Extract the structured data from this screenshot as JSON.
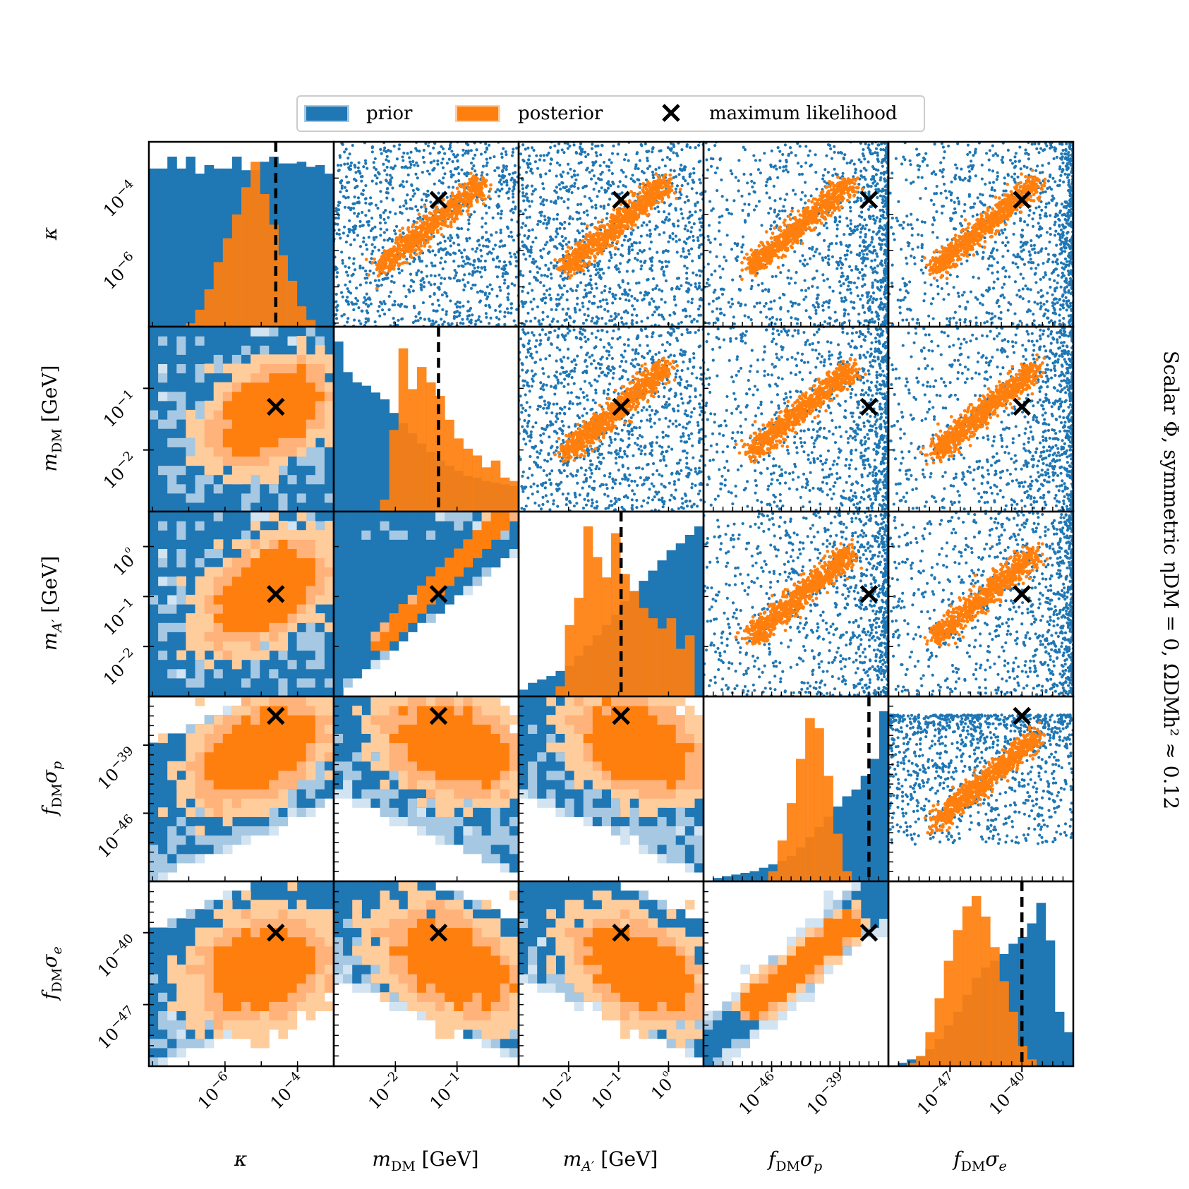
{
  "legend": {
    "items": [
      {
        "label": "prior",
        "color": "#1f77b4"
      },
      {
        "label": "posterior",
        "color": "#ff7f0e"
      },
      {
        "label": "maximum likelihood",
        "marker": "x"
      }
    ]
  },
  "side_title": "Scalar Φ, symmetric ηDM = 0, ΩDMh² ≈ 0.12",
  "colors": {
    "prior": "#1f77b4",
    "prior_light": "#a6c8e2",
    "prior_lighter": "#d2e3f1",
    "posterior": "#ff7f0e",
    "posterior_light": "#ffcc9c",
    "posterior_mid": "#ffb27a",
    "max_likelihood": "#000000"
  },
  "chart_data": {
    "type": "corner",
    "parameters": [
      {
        "name": "kappa",
        "label": "κ",
        "log": true,
        "range": [
          -8.1,
          -3.0
        ],
        "ticks": [
          {
            "value": -6,
            "label": "10−6"
          },
          {
            "value": -4,
            "label": "10−4"
          }
        ],
        "max_likelihood": -4.6
      },
      {
        "name": "m_DM",
        "label": "mDM [GeV]",
        "log": true,
        "range": [
          -3.0,
          0.0
        ],
        "ticks": [
          {
            "value": -2,
            "label": "10−2"
          },
          {
            "value": -1,
            "label": "10−1"
          }
        ],
        "max_likelihood": -1.3
      },
      {
        "name": "m_Aprime",
        "label": "mA′ [GeV]",
        "log": true,
        "range": [
          -3.0,
          0.7
        ],
        "ticks": [
          {
            "value": -2,
            "label": "10−2"
          },
          {
            "value": -1,
            "label": "10−1"
          },
          {
            "value": 0,
            "label": "10⁰"
          }
        ],
        "max_likelihood": -0.95
      },
      {
        "name": "fDM_sigma_p",
        "label": "fDMσp",
        "log": true,
        "range": [
          -53.0,
          -34.0
        ],
        "ticks": [
          {
            "value": -46,
            "label": "10−46"
          },
          {
            "value": -39,
            "label": "10−39"
          }
        ],
        "max_likelihood": -36.0
      },
      {
        "name": "fDM_sigma_e",
        "label": "fDMσe",
        "log": true,
        "range": [
          -53.0,
          -35.0
        ],
        "ticks": [
          {
            "value": -47,
            "label": "10−47"
          },
          {
            "value": -40,
            "label": "10−40"
          }
        ],
        "max_likelihood": -40.0
      }
    ],
    "marginals": [
      {
        "param": "kappa",
        "prior": [
          0.93,
          0.93,
          1.0,
          0.93,
          1.0,
          0.9,
          0.95,
          0.93,
          0.93,
          1.0,
          0.92,
          0.92,
          0.97,
          1.0,
          0.96,
          0.96,
          0.97,
          0.94,
          0.95,
          0.9
        ],
        "posterior": [
          0,
          0,
          0,
          0,
          0.02,
          0.1,
          0.22,
          0.38,
          0.52,
          0.66,
          0.82,
          0.97,
          0.78,
          0.6,
          0.42,
          0.27,
          0.12,
          0.04,
          0,
          0
        ]
      },
      {
        "param": "m_DM",
        "prior": [
          1.0,
          0.82,
          0.76,
          0.74,
          0.7,
          0.66,
          0.58,
          0.52,
          0.46,
          0.4,
          0.35,
          0.3,
          0.27,
          0.24,
          0.21,
          0.2,
          0.18,
          0.17,
          0.16,
          0.15
        ],
        "posterior": [
          0,
          0,
          0,
          0,
          0,
          0.07,
          0.48,
          0.96,
          0.72,
          0.85,
          0.76,
          0.68,
          0.54,
          0.43,
          0.37,
          0.33,
          0.26,
          0.3,
          0.2,
          0.18
        ]
      },
      {
        "param": "m_Aprime",
        "prior": [
          0.04,
          0.08,
          0.1,
          0.12,
          0.15,
          0.18,
          0.24,
          0.3,
          0.36,
          0.42,
          0.48,
          0.56,
          0.62,
          0.68,
          0.74,
          0.8,
          0.86,
          0.9,
          0.95,
          1.0
        ],
        "posterior": [
          0,
          0,
          0,
          0,
          0.06,
          0.42,
          0.58,
          1.0,
          0.82,
          0.7,
          0.96,
          0.72,
          0.62,
          0.52,
          0.46,
          0.4,
          0.46,
          0.28,
          0.36,
          0
        ]
      },
      {
        "param": "fDM_sigma_p",
        "prior": [
          0,
          0.02,
          0.03,
          0.04,
          0.05,
          0.06,
          0.08,
          0.1,
          0.12,
          0.15,
          0.2,
          0.26,
          0.32,
          0.38,
          0.44,
          0.5,
          0.54,
          0.62,
          0.72,
          1.0
        ],
        "posterior": [
          0,
          0,
          0,
          0,
          0,
          0,
          0,
          0.06,
          0.24,
          0.46,
          0.72,
          0.96,
          0.9,
          0.62,
          0.28,
          0.06,
          0,
          0,
          0,
          0
        ]
      },
      {
        "param": "fDM_sigma_e",
        "prior": [
          0,
          0.02,
          0.04,
          0.06,
          0.1,
          0.16,
          0.24,
          0.32,
          0.42,
          0.52,
          0.58,
          0.62,
          0.66,
          0.72,
          0.76,
          0.84,
          0.96,
          0.74,
          0.32,
          0.2
        ],
        "posterior": [
          0,
          0,
          0.02,
          0.06,
          0.2,
          0.4,
          0.62,
          0.8,
          0.94,
          1.0,
          0.88,
          0.7,
          0.5,
          0.32,
          0.12,
          0.04,
          0,
          0,
          0,
          0
        ]
      }
    ],
    "pairs": {
      "kappa|m_DM": {
        "corr": 0.4,
        "posterior_center": [
          -4.8,
          -1.4
        ],
        "posterior_spread": [
          0.7,
          0.35
        ]
      },
      "kappa|m_Aprime": {
        "corr": 0.45,
        "posterior_center": [
          -4.9,
          -0.9
        ],
        "posterior_spread": [
          0.7,
          0.45
        ]
      },
      "kappa|fDM_sigma_p": {
        "corr": 0.45,
        "posterior_center": [
          -5.0,
          -39.5
        ],
        "posterior_spread": [
          0.8,
          2.3
        ]
      },
      "kappa|fDM_sigma_e": {
        "corr": 0.2,
        "posterior_center": [
          -5.0,
          -43.5
        ],
        "posterior_spread": [
          0.8,
          2.2
        ]
      },
      "m_DM|m_Aprime": {
        "relation": "m_Aprime >= m_DM, posterior along m_Aprime ≈ m_DM diagonal"
      },
      "m_DM|fDM_sigma_p": {
        "corr": -0.3,
        "posterior_center": [
          -1.1,
          -39.0
        ],
        "posterior_spread": [
          0.5,
          2.2
        ]
      },
      "m_DM|fDM_sigma_e": {
        "corr": -0.45,
        "posterior_center": [
          -1.1,
          -43.0
        ],
        "posterior_spread": [
          0.5,
          2.3
        ]
      },
      "m_Aprime|fDM_sigma_p": {
        "corr": -0.3,
        "posterior_center": [
          -0.6,
          -39.0
        ],
        "posterior_spread": [
          0.55,
          2.2
        ]
      },
      "m_Aprime|fDM_sigma_e": {
        "corr": -0.45,
        "posterior_center": [
          -0.6,
          -43.5
        ],
        "posterior_spread": [
          0.55,
          2.2
        ]
      },
      "fDM_sigma_p|fDM_sigma_e": {
        "relation": "strong positive correlation along diagonal"
      }
    }
  }
}
